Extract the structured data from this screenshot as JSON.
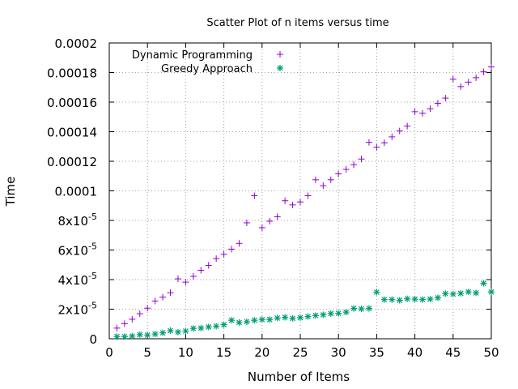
{
  "chart_data": {
    "type": "scatter",
    "title": "Scatter Plot of n items versus time",
    "xlabel": "Number of Items",
    "ylabel": "Time",
    "xlim": [
      0,
      50
    ],
    "ylim": [
      0,
      0.0002
    ],
    "x_ticks": [
      {
        "value": 0,
        "label": "0"
      },
      {
        "value": 5,
        "label": "5"
      },
      {
        "value": 10,
        "label": "10"
      },
      {
        "value": 15,
        "label": "15"
      },
      {
        "value": 20,
        "label": "20"
      },
      {
        "value": 25,
        "label": "25"
      },
      {
        "value": 30,
        "label": "30"
      },
      {
        "value": 35,
        "label": "35"
      },
      {
        "value": 40,
        "label": "40"
      },
      {
        "value": 45,
        "label": "45"
      },
      {
        "value": 50,
        "label": "50"
      }
    ],
    "y_ticks": [
      {
        "value": 0,
        "label": "0",
        "base": "0",
        "exp": ""
      },
      {
        "value": 2e-05,
        "label": "2x10-5",
        "base": "2x10",
        "exp": "-5"
      },
      {
        "value": 4e-05,
        "label": "4x10-5",
        "base": "4x10",
        "exp": "-5"
      },
      {
        "value": 6e-05,
        "label": "6x10-5",
        "base": "6x10",
        "exp": "-5"
      },
      {
        "value": 8e-05,
        "label": "8x10-5",
        "base": "8x10",
        "exp": "-5"
      },
      {
        "value": 0.0001,
        "label": "0.0001",
        "base": "0.0001",
        "exp": ""
      },
      {
        "value": 0.00012,
        "label": "0.00012",
        "base": "0.00012",
        "exp": ""
      },
      {
        "value": 0.00014,
        "label": "0.00014",
        "base": "0.00014",
        "exp": ""
      },
      {
        "value": 0.00016,
        "label": "0.00016",
        "base": "0.00016",
        "exp": ""
      },
      {
        "value": 0.00018,
        "label": "0.00018",
        "base": "0.00018",
        "exp": ""
      },
      {
        "value": 0.0002,
        "label": "0.0002",
        "base": "0.0002",
        "exp": ""
      }
    ],
    "grid": true,
    "legend_position": "top-left",
    "series": [
      {
        "name": "Dynamic Programming",
        "marker": "plus",
        "color": "#9400d3",
        "x": [
          1,
          2,
          3,
          4,
          5,
          6,
          7,
          8,
          9,
          10,
          11,
          12,
          13,
          14,
          15,
          16,
          17,
          18,
          19,
          20,
          21,
          22,
          23,
          24,
          25,
          26,
          27,
          28,
          29,
          30,
          31,
          32,
          33,
          34,
          35,
          36,
          37,
          38,
          39,
          40,
          41,
          42,
          43,
          44,
          45,
          46,
          47,
          48,
          49,
          50
        ],
        "y": [
          7.2e-06,
          1.02e-05,
          1.32e-05,
          1.69e-05,
          2.07e-05,
          2.55e-05,
          2.81e-05,
          3.11e-05,
          4.05e-05,
          3.83e-05,
          4.22e-05,
          4.63e-05,
          4.96e-05,
          5.42e-05,
          5.71e-05,
          6.06e-05,
          6.45e-05,
          7.84e-05,
          9.67e-05,
          7.51e-05,
          7.95e-05,
          8.25e-05,
          9.33e-05,
          9.05e-05,
          9.25e-05,
          9.67e-05,
          0.0001075,
          0.0001035,
          0.0001075,
          0.0001115,
          0.0001145,
          0.0001177,
          0.0001215,
          0.0001328,
          0.0001295,
          0.0001325,
          0.0001365,
          0.0001405,
          0.0001438,
          0.0001535,
          0.0001525,
          0.0001555,
          0.0001592,
          0.0001627,
          0.0001755,
          0.0001705,
          0.0001735,
          0.0001765,
          0.0001805,
          0.0001838
        ]
      },
      {
        "name": "Greedy Approach",
        "marker": "star",
        "color": "#009e73",
        "x": [
          1,
          2,
          3,
          4,
          5,
          6,
          7,
          8,
          9,
          10,
          11,
          12,
          13,
          14,
          15,
          16,
          17,
          18,
          19,
          20,
          21,
          22,
          23,
          24,
          25,
          26,
          27,
          28,
          29,
          30,
          31,
          32,
          33,
          34,
          35,
          36,
          37,
          38,
          39,
          40,
          41,
          42,
          43,
          44,
          45,
          46,
          47,
          48,
          49,
          50
        ],
        "y": [
          1.5e-06,
          1.5e-06,
          1.8e-06,
          2.8e-06,
          2.5e-06,
          3.2e-06,
          4e-06,
          5.5e-06,
          4.5e-06,
          5.2e-06,
          7e-06,
          7.2e-06,
          8e-06,
          8.5e-06,
          9.5e-06,
          1.25e-05,
          1.1e-05,
          1.15e-05,
          1.25e-05,
          1.3e-05,
          1.3e-05,
          1.4e-05,
          1.45e-05,
          1.38e-05,
          1.43e-05,
          1.5e-05,
          1.57e-05,
          1.62e-05,
          1.7e-05,
          1.72e-05,
          1.8e-05,
          2.05e-05,
          2.02e-05,
          2.05e-05,
          3.15e-05,
          2.65e-05,
          2.65e-05,
          2.6e-05,
          2.7e-05,
          2.68e-05,
          2.65e-05,
          2.68e-05,
          2.77e-05,
          3.05e-05,
          3.02e-05,
          3.07e-05,
          3.17e-05,
          3.1e-05,
          3.75e-05,
          3.17e-05
        ]
      }
    ]
  }
}
